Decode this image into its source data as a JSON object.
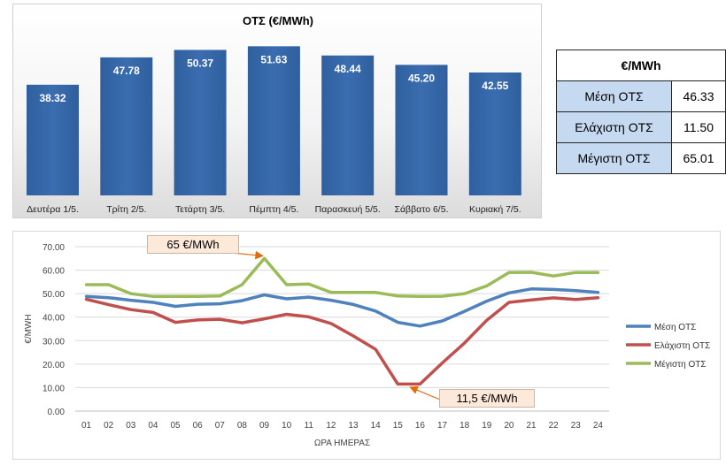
{
  "chart_data": [
    {
      "type": "bar",
      "title": "ΟΤΣ (€/MWh)",
      "categories": [
        "Δευτέρα 1/5.",
        "Τρίτη 2/5.",
        "Τετάρτη 3/5.",
        "Πέμπτη 4/5.",
        "Παρασκευή 5/5.",
        "Σάββατο 6/5.",
        "Κυριακή 7/5."
      ],
      "values": [
        38.32,
        47.78,
        50.37,
        51.63,
        48.44,
        45.2,
        42.55
      ],
      "value_labels": [
        "38.32",
        "47.78",
        "50.37",
        "51.63",
        "48.44",
        "45.20",
        "42.55"
      ],
      "ylim": [
        0,
        60
      ],
      "grid": false,
      "bar_color": "#3a6db0"
    },
    {
      "type": "line",
      "x": [
        "01",
        "02",
        "03",
        "04",
        "05",
        "06",
        "07",
        "08",
        "09",
        "10",
        "11",
        "12",
        "13",
        "14",
        "15",
        "16",
        "17",
        "18",
        "19",
        "20",
        "21",
        "22",
        "23",
        "24"
      ],
      "xlabel": "ΩΡΑ ΗΜΕΡΑΣ",
      "ylabel": "€/MWH",
      "ylim": [
        0,
        70
      ],
      "yticks": [
        "0.00",
        "10.00",
        "20.00",
        "30.00",
        "40.00",
        "50.00",
        "60.00",
        "70.00"
      ],
      "grid": true,
      "legend": "right",
      "series": [
        {
          "name": "Μέση ΟΤΣ",
          "color": "#4f81bd",
          "values": [
            48.8,
            48.3,
            47.2,
            46.3,
            44.6,
            45.5,
            45.7,
            47.0,
            49.5,
            47.8,
            48.5,
            47.2,
            45.4,
            42.6,
            37.8,
            36.2,
            38.4,
            42.5,
            46.8,
            50.3,
            52.0,
            51.8,
            51.3,
            50.5
          ]
        },
        {
          "name": "Ελάχιστη ΟΤΣ",
          "color": "#c0504d",
          "values": [
            47.6,
            45.3,
            43.2,
            42.0,
            37.8,
            38.8,
            39.1,
            37.6,
            39.3,
            41.2,
            40.1,
            37.3,
            32.0,
            26.3,
            11.5,
            11.5,
            20.5,
            29.0,
            38.7,
            46.3,
            47.3,
            48.2,
            47.5,
            48.3
          ]
        },
        {
          "name": "Μέγιστη ΟΤΣ",
          "color": "#9bbb59",
          "values": [
            53.8,
            53.8,
            50.0,
            48.8,
            48.8,
            48.8,
            49.0,
            53.8,
            65.0,
            53.8,
            54.1,
            50.5,
            50.5,
            50.5,
            49.0,
            48.8,
            48.9,
            50.0,
            53.3,
            59.0,
            59.1,
            57.5,
            59.0,
            59.0
          ]
        }
      ],
      "annotations": [
        {
          "text": "65 €/MWh",
          "x": "09",
          "y": 65.0
        },
        {
          "text": "11,5 €/MWh",
          "x": "16",
          "y": 11.5
        }
      ]
    }
  ],
  "stats_table": {
    "header": "€/MWh",
    "rows": [
      {
        "label": "Μέση ΟΤΣ",
        "value": "46.33"
      },
      {
        "label": "Ελάχιστη ΟΤΣ",
        "value": "11.50"
      },
      {
        "label": "Μέγιστη ΟΤΣ",
        "value": "65.01"
      }
    ]
  }
}
